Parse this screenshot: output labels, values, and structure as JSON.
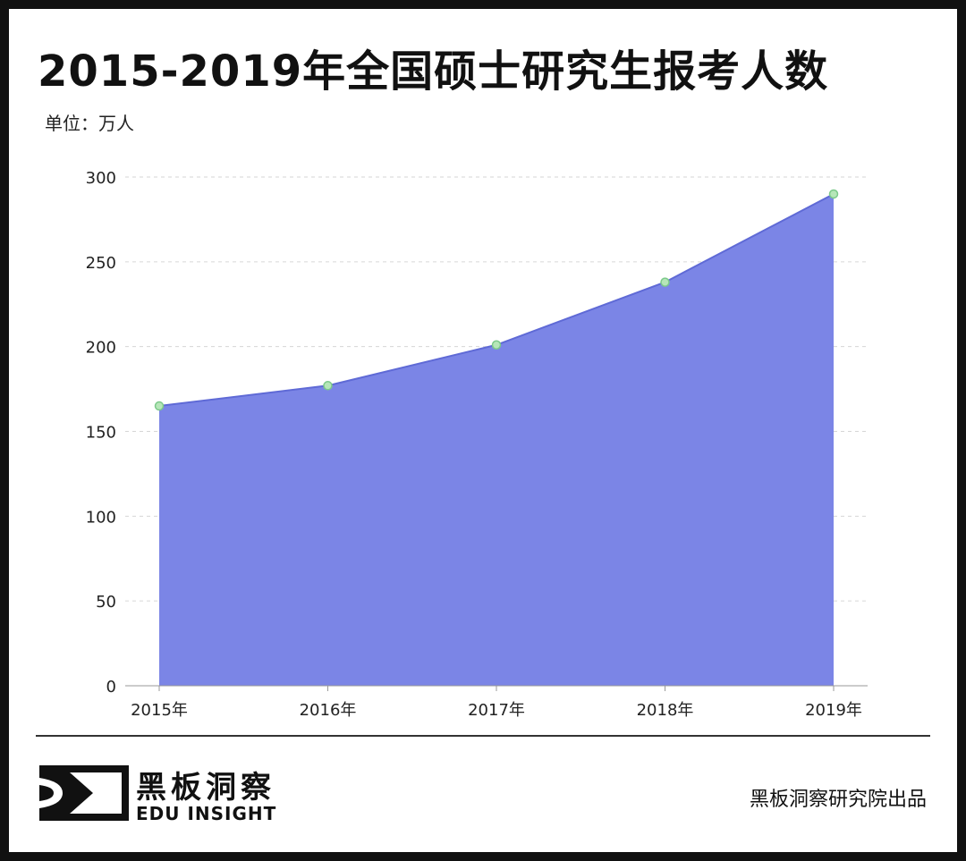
{
  "header": {
    "title": "2015-2019年全国硕士研究生报考人数",
    "unit_label": "单位：万人"
  },
  "chart_data": {
    "type": "area",
    "title": "2015-2019年全国硕士研究生报考人数",
    "ylabel": "单位：万人",
    "xlabel": "",
    "categories": [
      "2015年",
      "2016年",
      "2017年",
      "2018年",
      "2019年"
    ],
    "series": [
      {
        "values": [
          165,
          177,
          201,
          238,
          290
        ]
      }
    ],
    "ylim": [
      0,
      300
    ],
    "yticks": [
      0,
      50,
      100,
      150,
      200,
      250,
      300
    ],
    "grid": true,
    "grid_style": "dashed-horizontal",
    "colors": {
      "area_fill": "#7b85e6",
      "line": "#5f6ad6",
      "marker": "#b6e6b8",
      "marker_stroke": "#7cc98a"
    }
  },
  "footer": {
    "brand_cn": "黑板洞察",
    "brand_en": "EDU INSIGHT",
    "credit": "黑板洞察研究院出品"
  }
}
